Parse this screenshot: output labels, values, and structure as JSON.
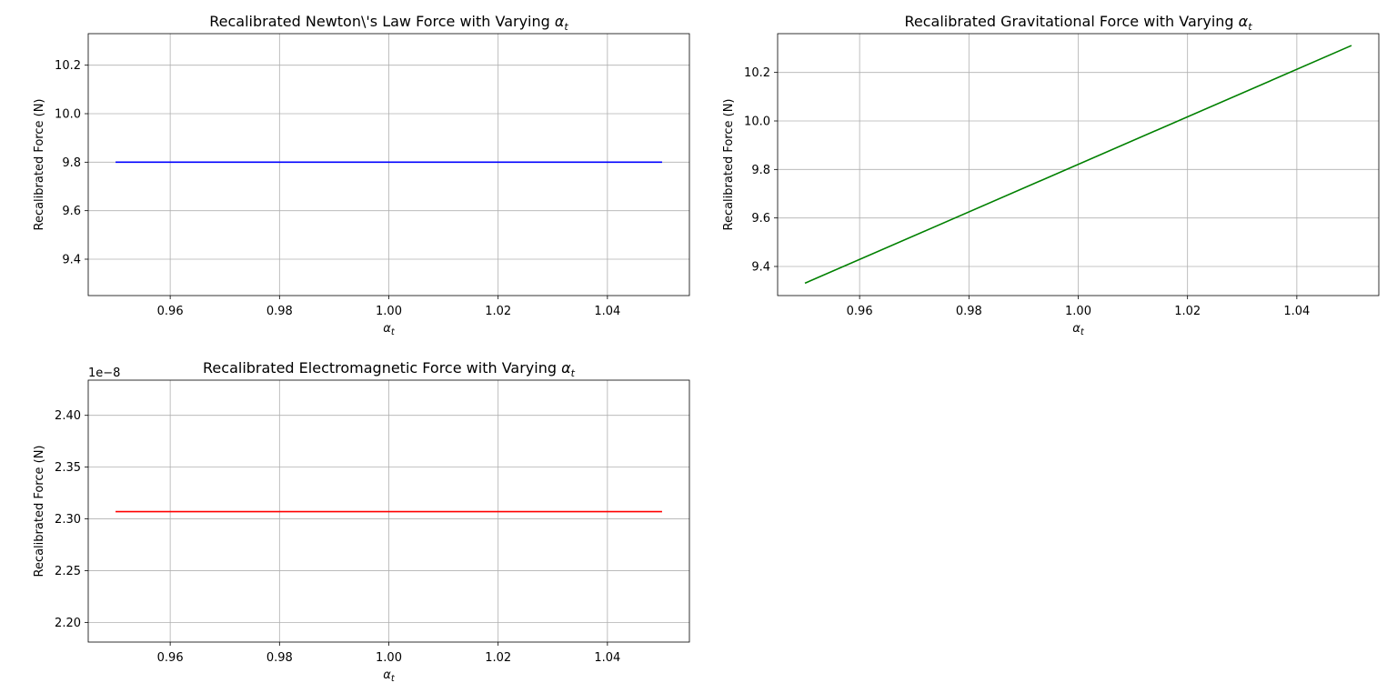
{
  "chart_data": [
    {
      "type": "line",
      "title": "Recalibrated Newton\\'s Law Force with Varying ",
      "title_symbol": "α",
      "title_subscript": "t",
      "xlabel_symbol": "α",
      "xlabel_subscript": "t",
      "ylabel": "Recalibrated Force (N)",
      "xlim": [
        0.945,
        1.055
      ],
      "ylim": [
        9.25,
        10.33
      ],
      "xticks": [
        0.96,
        0.98,
        1.0,
        1.02,
        1.04
      ],
      "xtick_labels": [
        "0.96",
        "0.98",
        "1.00",
        "1.02",
        "1.04"
      ],
      "yticks": [
        9.4,
        9.6,
        9.8,
        10.0,
        10.2
      ],
      "ytick_labels": [
        "9.4",
        "9.6",
        "9.8",
        "10.0",
        "10.2"
      ],
      "offset_label": "",
      "grid": true,
      "series": [
        {
          "color": "#0000ff",
          "x": [
            0.95,
            1.05
          ],
          "y": [
            9.8,
            9.8
          ]
        }
      ]
    },
    {
      "type": "line",
      "title": "Recalibrated Gravitational Force with Varying ",
      "title_symbol": "α",
      "title_subscript": "t",
      "xlabel_symbol": "α",
      "xlabel_subscript": "t",
      "ylabel": "Recalibrated Force (N)",
      "xlim": [
        0.945,
        1.055
      ],
      "ylim": [
        9.28,
        10.36
      ],
      "xticks": [
        0.96,
        0.98,
        1.0,
        1.02,
        1.04
      ],
      "xtick_labels": [
        "0.96",
        "0.98",
        "1.00",
        "1.02",
        "1.04"
      ],
      "yticks": [
        9.4,
        9.6,
        9.8,
        10.0,
        10.2
      ],
      "ytick_labels": [
        "9.4",
        "9.6",
        "9.8",
        "10.0",
        "10.2"
      ],
      "offset_label": "",
      "grid": true,
      "series": [
        {
          "color": "#008000",
          "x": [
            0.95,
            1.05
          ],
          "y": [
            9.331,
            10.311
          ]
        }
      ]
    },
    {
      "type": "line",
      "title": "Recalibrated Electromagnetic Force with Varying ",
      "title_symbol": "α",
      "title_subscript": "t",
      "xlabel_symbol": "α",
      "xlabel_subscript": "t",
      "ylabel": "Recalibrated Force (N)",
      "xlim": [
        0.945,
        1.055
      ],
      "ylim": [
        2.181,
        2.434
      ],
      "xticks": [
        0.96,
        0.98,
        1.0,
        1.02,
        1.04
      ],
      "xtick_labels": [
        "0.96",
        "0.98",
        "1.00",
        "1.02",
        "1.04"
      ],
      "yticks": [
        2.2,
        2.25,
        2.3,
        2.35,
        2.4
      ],
      "ytick_labels": [
        "2.20",
        "2.25",
        "2.30",
        "2.35",
        "2.40"
      ],
      "offset_label": "1e−8",
      "grid": true,
      "series": [
        {
          "color": "#ff0000",
          "x": [
            0.95,
            1.05
          ],
          "y": [
            2.307,
            2.307
          ]
        }
      ]
    }
  ]
}
